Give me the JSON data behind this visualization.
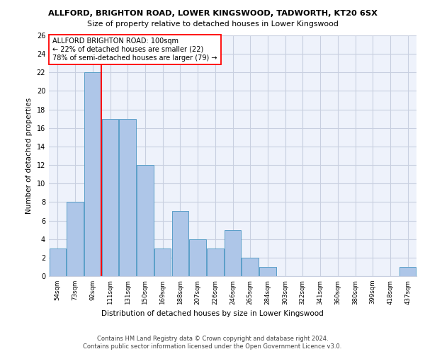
{
  "title1": "ALLFORD, BRIGHTON ROAD, LOWER KINGSWOOD, TADWORTH, KT20 6SX",
  "title2": "Size of property relative to detached houses in Lower Kingswood",
  "xlabel": "Distribution of detached houses by size in Lower Kingswood",
  "ylabel": "Number of detached properties",
  "categories": [
    "54sqm",
    "73sqm",
    "92sqm",
    "111sqm",
    "131sqm",
    "150sqm",
    "169sqm",
    "188sqm",
    "207sqm",
    "226sqm",
    "246sqm",
    "265sqm",
    "284sqm",
    "303sqm",
    "322sqm",
    "341sqm",
    "360sqm",
    "380sqm",
    "399sqm",
    "418sqm",
    "437sqm"
  ],
  "values": [
    3,
    8,
    22,
    17,
    17,
    12,
    3,
    7,
    4,
    3,
    5,
    2,
    1,
    0,
    0,
    0,
    0,
    0,
    0,
    0,
    1
  ],
  "bar_color": "#aec6e8",
  "bar_edge_color": "#5a9fc8",
  "vline_color": "red",
  "annotation_title": "ALLFORD BRIGHTON ROAD: 100sqm",
  "annotation_line1": "← 22% of detached houses are smaller (22)",
  "annotation_line2": "78% of semi-detached houses are larger (79) →",
  "ylim": [
    0,
    26
  ],
  "yticks": [
    0,
    2,
    4,
    6,
    8,
    10,
    12,
    14,
    16,
    18,
    20,
    22,
    24,
    26
  ],
  "footer1": "Contains HM Land Registry data © Crown copyright and database right 2024.",
  "footer2": "Contains public sector information licensed under the Open Government Licence v3.0.",
  "bg_color": "#eef2fb",
  "grid_color": "#c8cfe0"
}
